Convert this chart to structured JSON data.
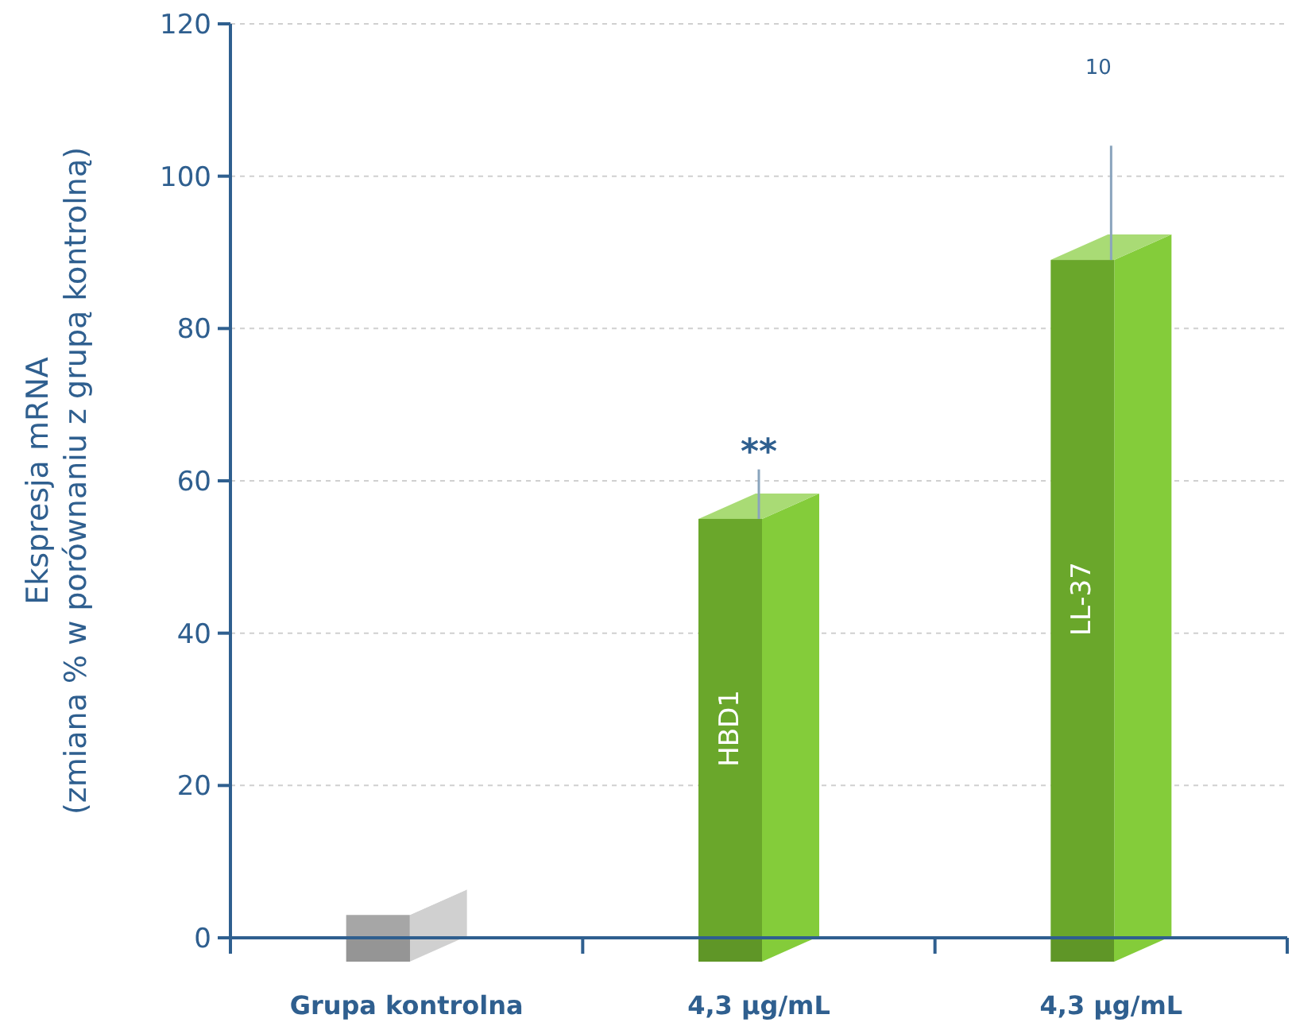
{
  "chart_data": {
    "type": "bar",
    "ylabel": "Ekspresja mRNA\n(zmiana % w porównaniu z grupą kontrolną)",
    "categories": [
      "Grupa kontrolna",
      "4,3 µg/mL",
      "4,3 µg/mL"
    ],
    "series": [
      {
        "color": "#a6a6a6",
        "values": [
          3,
          null,
          null
        ]
      },
      {
        "name": "HBD1",
        "color": "#6aa72b",
        "values": [
          null,
          55,
          null
        ],
        "errors": [
          null,
          [
            55,
            61.5
          ],
          null
        ]
      },
      {
        "name": "LL-37",
        "color": "#6aa72b",
        "values": [
          null,
          null,
          89
        ],
        "errors": [
          null,
          null,
          [
            89,
            104
          ]
        ]
      }
    ],
    "annotations": [
      "**",
      "10"
    ],
    "ylim": [
      0,
      120
    ],
    "yticks": [
      0,
      20,
      40,
      60,
      80,
      100,
      120
    ],
    "grid": "y"
  }
}
